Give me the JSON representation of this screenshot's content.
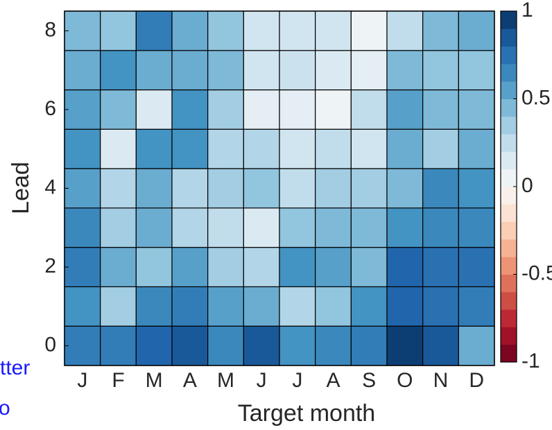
{
  "chart_data": {
    "type": "heatmap",
    "xlabel": "Target month",
    "ylabel": "Lead",
    "x": [
      "J",
      "F",
      "M",
      "A",
      "M",
      "J",
      "J",
      "A",
      "S",
      "O",
      "N",
      "D"
    ],
    "y": [
      0,
      1,
      2,
      3,
      4,
      5,
      6,
      7,
      8
    ],
    "values": [
      [
        0.7,
        0.7,
        0.8,
        0.85,
        0.65,
        0.85,
        0.6,
        0.65,
        0.7,
        0.95,
        0.85,
        0.5
      ],
      [
        0.6,
        0.35,
        0.65,
        0.7,
        0.55,
        0.5,
        0.3,
        0.4,
        0.6,
        0.8,
        0.75,
        0.7
      ],
      [
        0.7,
        0.5,
        0.4,
        0.55,
        0.35,
        0.3,
        0.6,
        0.55,
        0.45,
        0.8,
        0.75,
        0.75
      ],
      [
        0.65,
        0.35,
        0.5,
        0.3,
        0.25,
        0.15,
        0.4,
        0.45,
        0.45,
        0.6,
        0.65,
        0.65
      ],
      [
        0.55,
        0.3,
        0.5,
        0.3,
        0.35,
        0.4,
        0.25,
        0.35,
        0.35,
        0.45,
        0.65,
        0.6
      ],
      [
        0.6,
        0.15,
        0.6,
        0.6,
        0.3,
        0.3,
        0.2,
        0.25,
        0.2,
        0.5,
        0.35,
        0.5
      ],
      [
        0.55,
        0.45,
        0.15,
        0.6,
        0.35,
        0.1,
        0.1,
        0.05,
        0.25,
        0.55,
        0.45,
        0.45
      ],
      [
        0.5,
        0.6,
        0.5,
        0.5,
        0.45,
        0.2,
        0.22,
        0.15,
        0.1,
        0.45,
        0.4,
        0.4
      ],
      [
        0.45,
        0.4,
        0.7,
        0.5,
        0.4,
        0.2,
        0.2,
        0.2,
        0.05,
        0.25,
        0.45,
        0.5
      ]
    ],
    "ylim": [
      -0.5,
      8.5
    ],
    "yticks": [
      0,
      2,
      4,
      6,
      8
    ],
    "clim": [
      -1,
      1
    ],
    "cticks": [
      1,
      {
        "value": 0.5,
        "label": "0.5"
      },
      0,
      {
        "value": -0.5,
        "label": "-0.5"
      },
      -1
    ],
    "colormap": [
      "#67001f",
      "#b2182b",
      "#d6604d",
      "#f4a582",
      "#fddbc7",
      "#f7f7f7",
      "#d1e5f0",
      "#92c5de",
      "#4393c3",
      "#2166ac",
      "#053061"
    ],
    "annotations": [
      "tter",
      "o"
    ],
    "annotation_color": "#1a1aff"
  }
}
